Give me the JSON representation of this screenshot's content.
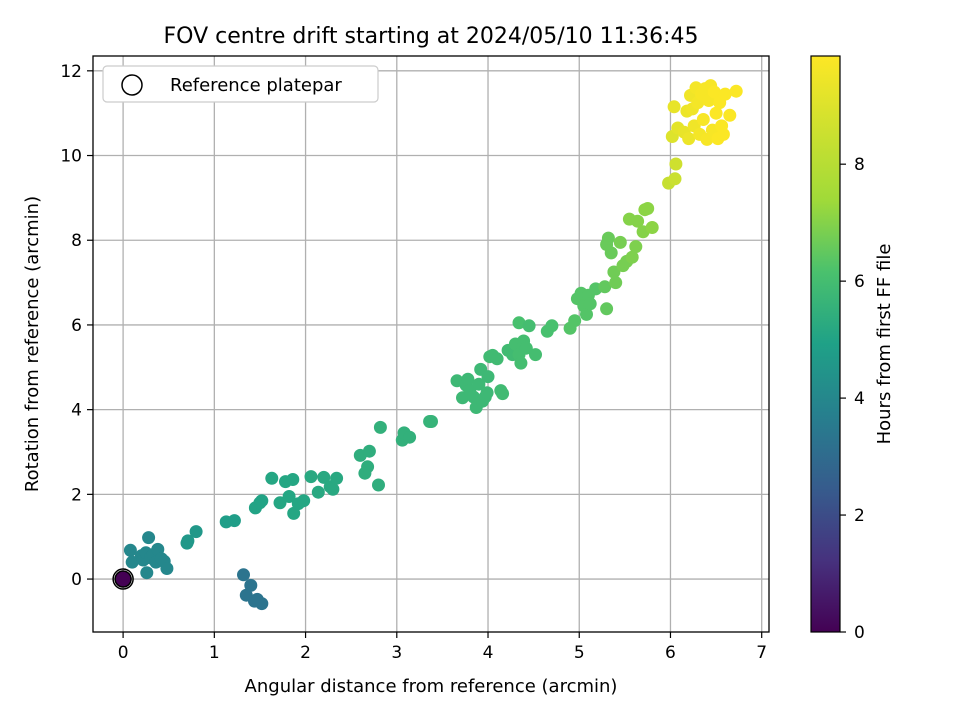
{
  "chart_data": {
    "type": "scatter",
    "title": "FOV centre drift starting at 2024/05/10 11:36:45",
    "xlabel": "Angular distance from reference (arcmin)",
    "ylabel": "Rotation from reference (arcmin)",
    "xlim": [
      -0.33,
      7.08
    ],
    "ylim": [
      -1.25,
      12.35
    ],
    "xticks": [
      0,
      1,
      2,
      3,
      4,
      5,
      6,
      7
    ],
    "yticks": [
      0,
      2,
      4,
      6,
      8,
      10,
      12
    ],
    "grid": true,
    "legend": {
      "placement": "top-left",
      "entries": [
        "Reference platepar"
      ]
    },
    "reference_point": {
      "x": 0,
      "y": 0,
      "t": 0
    },
    "colorbar": {
      "label": "Hours from first FF file",
      "colormap": "viridis",
      "range": [
        0,
        9.85
      ],
      "ticks": [
        0,
        2,
        4,
        6,
        8
      ]
    },
    "points": [
      [
        0.08,
        0.68,
        4.0
      ],
      [
        0.1,
        0.4,
        4.0
      ],
      [
        0.2,
        0.55,
        4.0
      ],
      [
        0.22,
        0.45,
        4.0
      ],
      [
        0.25,
        0.62,
        4.0
      ],
      [
        0.26,
        0.15,
        4.0
      ],
      [
        0.28,
        0.98,
        4.0
      ],
      [
        0.3,
        0.5,
        4.0
      ],
      [
        0.33,
        0.58,
        4.0
      ],
      [
        0.36,
        0.4,
        4.0
      ],
      [
        0.38,
        0.7,
        4.0
      ],
      [
        0.42,
        0.48,
        4.0
      ],
      [
        0.45,
        0.42,
        4.0
      ],
      [
        0.48,
        0.25,
        4.0
      ],
      [
        0.7,
        0.85,
        4.6
      ],
      [
        0.71,
        0.9,
        4.6
      ],
      [
        0.8,
        1.12,
        4.6
      ],
      [
        1.13,
        1.35,
        4.8
      ],
      [
        1.22,
        1.38,
        4.8
      ],
      [
        1.32,
        0.1,
        3.3
      ],
      [
        1.35,
        -0.38,
        3.3
      ],
      [
        1.4,
        -0.15,
        3.3
      ],
      [
        1.44,
        -0.52,
        3.3
      ],
      [
        1.47,
        -0.48,
        3.3
      ],
      [
        1.52,
        -0.58,
        3.3
      ],
      [
        1.45,
        1.68,
        5.0
      ],
      [
        1.5,
        1.8,
        5.0
      ],
      [
        1.52,
        1.85,
        5.0
      ],
      [
        1.63,
        2.38,
        5.1
      ],
      [
        1.72,
        1.8,
        5.1
      ],
      [
        1.78,
        2.3,
        5.1
      ],
      [
        1.82,
        1.95,
        5.1
      ],
      [
        1.86,
        2.35,
        5.1
      ],
      [
        1.87,
        1.55,
        5.1
      ],
      [
        1.92,
        1.78,
        5.1
      ],
      [
        1.98,
        1.85,
        5.1
      ],
      [
        2.06,
        2.42,
        5.2
      ],
      [
        2.14,
        2.05,
        5.2
      ],
      [
        2.2,
        2.4,
        5.2
      ],
      [
        2.27,
        2.18,
        5.2
      ],
      [
        2.3,
        2.12,
        5.2
      ],
      [
        2.34,
        2.38,
        5.2
      ],
      [
        2.6,
        2.92,
        5.4
      ],
      [
        2.65,
        2.5,
        5.4
      ],
      [
        2.68,
        2.65,
        5.4
      ],
      [
        2.7,
        3.02,
        5.4
      ],
      [
        2.8,
        2.22,
        5.4
      ],
      [
        2.82,
        3.58,
        5.5
      ],
      [
        3.06,
        3.28,
        5.5
      ],
      [
        3.08,
        3.45,
        5.5
      ],
      [
        3.14,
        3.35,
        5.5
      ],
      [
        3.36,
        3.72,
        5.6
      ],
      [
        3.38,
        3.72,
        5.6
      ],
      [
        3.66,
        4.68,
        5.8
      ],
      [
        3.72,
        4.28,
        5.8
      ],
      [
        3.76,
        4.58,
        5.8
      ],
      [
        3.78,
        4.72,
        5.8
      ],
      [
        3.8,
        4.45,
        5.8
      ],
      [
        3.84,
        4.3,
        5.8
      ],
      [
        3.87,
        4.05,
        5.8
      ],
      [
        3.9,
        4.6,
        5.8
      ],
      [
        3.92,
        4.95,
        5.8
      ],
      [
        3.94,
        4.2,
        5.8
      ],
      [
        3.97,
        4.3,
        5.8
      ],
      [
        3.99,
        4.4,
        5.8
      ],
      [
        4.0,
        4.78,
        5.8
      ],
      [
        4.02,
        5.25,
        5.9
      ],
      [
        4.05,
        5.28,
        5.9
      ],
      [
        4.1,
        5.2,
        5.9
      ],
      [
        4.14,
        4.45,
        5.9
      ],
      [
        4.16,
        4.38,
        5.9
      ],
      [
        4.22,
        5.4,
        5.9
      ],
      [
        4.27,
        5.3,
        5.9
      ],
      [
        4.3,
        5.55,
        6.0
      ],
      [
        4.34,
        5.3,
        6.0
      ],
      [
        4.36,
        5.1,
        6.0
      ],
      [
        4.39,
        5.62,
        6.0
      ],
      [
        4.34,
        6.05,
        6.1
      ],
      [
        4.42,
        5.45,
        6.0
      ],
      [
        4.45,
        5.98,
        6.0
      ],
      [
        4.52,
        5.3,
        6.0
      ],
      [
        4.65,
        5.85,
        6.1
      ],
      [
        4.7,
        5.98,
        6.1
      ],
      [
        4.9,
        5.92,
        6.3
      ],
      [
        4.95,
        6.1,
        6.3
      ],
      [
        4.98,
        6.62,
        6.3
      ],
      [
        5.02,
        6.75,
        6.3
      ],
      [
        5.05,
        6.45,
        6.3
      ],
      [
        5.08,
        6.25,
        6.3
      ],
      [
        5.1,
        6.7,
        6.3
      ],
      [
        5.12,
        6.5,
        6.3
      ],
      [
        5.18,
        6.85,
        6.3
      ],
      [
        5.28,
        6.9,
        6.5
      ],
      [
        5.3,
        6.38,
        6.5
      ],
      [
        5.3,
        7.9,
        6.6
      ],
      [
        5.32,
        8.05,
        6.6
      ],
      [
        5.35,
        7.7,
        6.6
      ],
      [
        5.38,
        7.25,
        6.7
      ],
      [
        5.4,
        7.0,
        6.7
      ],
      [
        5.45,
        7.95,
        6.8
      ],
      [
        5.48,
        7.4,
        6.8
      ],
      [
        5.52,
        7.5,
        6.8
      ],
      [
        5.55,
        8.5,
        7.0
      ],
      [
        5.58,
        7.6,
        6.9
      ],
      [
        5.62,
        7.85,
        6.9
      ],
      [
        5.64,
        8.45,
        7.0
      ],
      [
        5.7,
        8.2,
        7.0
      ],
      [
        5.72,
        8.72,
        7.1
      ],
      [
        5.75,
        8.75,
        7.1
      ],
      [
        5.8,
        8.3,
        7.1
      ],
      [
        5.98,
        9.35,
        8.4
      ],
      [
        6.02,
        10.45,
        9.0
      ],
      [
        6.04,
        11.15,
        9.3
      ],
      [
        6.05,
        9.45,
        8.5
      ],
      [
        6.06,
        9.8,
        8.6
      ],
      [
        6.08,
        10.65,
        9.2
      ],
      [
        6.15,
        10.55,
        9.3
      ],
      [
        6.18,
        11.05,
        9.4
      ],
      [
        6.2,
        10.4,
        9.4
      ],
      [
        6.22,
        11.42,
        9.5
      ],
      [
        6.24,
        11.1,
        9.5
      ],
      [
        6.26,
        10.7,
        9.5
      ],
      [
        6.28,
        11.6,
        9.6
      ],
      [
        6.3,
        11.25,
        9.6
      ],
      [
        6.32,
        10.5,
        9.6
      ],
      [
        6.34,
        11.45,
        9.7
      ],
      [
        6.36,
        10.85,
        9.7
      ],
      [
        6.38,
        11.58,
        9.7
      ],
      [
        6.4,
        10.38,
        9.7
      ],
      [
        6.42,
        11.3,
        9.7
      ],
      [
        6.44,
        11.65,
        9.7
      ],
      [
        6.46,
        10.6,
        9.7
      ],
      [
        6.48,
        11.5,
        9.8
      ],
      [
        6.5,
        11.0,
        9.8
      ],
      [
        6.52,
        10.4,
        9.8
      ],
      [
        6.54,
        11.25,
        9.8
      ],
      [
        6.56,
        10.7,
        9.8
      ],
      [
        6.58,
        10.5,
        9.8
      ],
      [
        6.6,
        11.45,
        9.8
      ],
      [
        6.65,
        10.95,
        9.8
      ],
      [
        6.72,
        11.52,
        9.8
      ]
    ]
  }
}
